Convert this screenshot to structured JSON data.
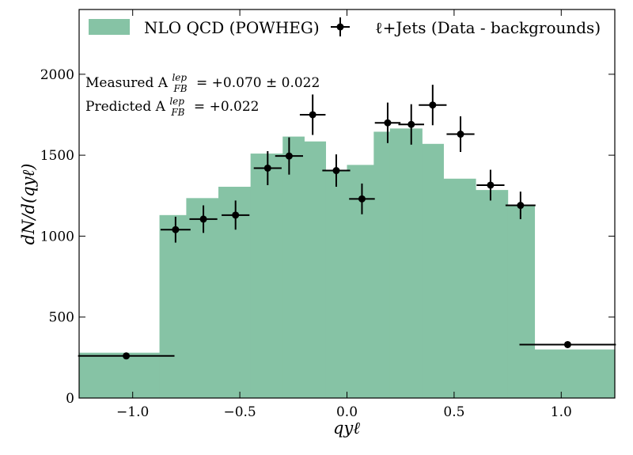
{
  "chart_data": {
    "type": "bar",
    "title": "",
    "xlabel": "qyℓ",
    "ylabel": "dN/d(qyℓ)",
    "xlim": [
      -1.25,
      1.25
    ],
    "ylim": [
      0,
      2400
    ],
    "xticks": [
      -1.0,
      -0.5,
      0.0,
      0.5,
      1.0
    ],
    "xtick_labels": [
      "−1.0",
      "−0.5",
      "0.0",
      "0.5",
      "1.0"
    ],
    "yticks": [
      0,
      500,
      1000,
      1500,
      2000
    ],
    "ytick_labels": [
      "0",
      "500",
      "1000",
      "1500",
      "2000"
    ],
    "series": [
      {
        "name": "NLO QCD (POWHEG)",
        "kind": "histogram",
        "color": "#86c3a5",
        "bin_edges": [
          -1.25,
          -0.875,
          -0.75,
          -0.6,
          -0.45,
          -0.3,
          -0.2,
          -0.1,
          0.0,
          0.125,
          0.2,
          0.35,
          0.45,
          0.6,
          0.75,
          0.875,
          1.25
        ],
        "values": [
          280,
          1130,
          1235,
          1305,
          1510,
          1615,
          1585,
          1405,
          1440,
          1645,
          1665,
          1570,
          1355,
          1285,
          1195,
          300
        ]
      },
      {
        "name": "ℓ+Jets (Data - backgrounds)",
        "kind": "errorbar",
        "color": "#000000",
        "points": [
          {
            "x": -1.03,
            "y": 260,
            "xerr": 0.225,
            "yerr": 15
          },
          {
            "x": -0.8,
            "y": 1040,
            "xerr": 0.07,
            "yerr": 80
          },
          {
            "x": -0.67,
            "y": 1105,
            "xerr": 0.065,
            "yerr": 85
          },
          {
            "x": -0.52,
            "y": 1130,
            "xerr": 0.065,
            "yerr": 90
          },
          {
            "x": -0.37,
            "y": 1420,
            "xerr": 0.065,
            "yerr": 105
          },
          {
            "x": -0.27,
            "y": 1495,
            "xerr": 0.065,
            "yerr": 115
          },
          {
            "x": -0.16,
            "y": 1750,
            "xerr": 0.06,
            "yerr": 125
          },
          {
            "x": -0.05,
            "y": 1405,
            "xerr": 0.065,
            "yerr": 100
          },
          {
            "x": 0.07,
            "y": 1230,
            "xerr": 0.06,
            "yerr": 95
          },
          {
            "x": 0.19,
            "y": 1700,
            "xerr": 0.06,
            "yerr": 125
          },
          {
            "x": 0.3,
            "y": 1690,
            "xerr": 0.06,
            "yerr": 125
          },
          {
            "x": 0.4,
            "y": 1810,
            "xerr": 0.065,
            "yerr": 125
          },
          {
            "x": 0.53,
            "y": 1630,
            "xerr": 0.065,
            "yerr": 110
          },
          {
            "x": 0.67,
            "y": 1315,
            "xerr": 0.065,
            "yerr": 95
          },
          {
            "x": 0.81,
            "y": 1190,
            "xerr": 0.07,
            "yerr": 85
          },
          {
            "x": 1.03,
            "y": 330,
            "xerr": 0.225,
            "yerr": 15
          }
        ]
      }
    ],
    "legend": {
      "position": "top",
      "entries": [
        "NLO QCD (POWHEG)",
        "ℓ+Jets (Data - backgrounds)"
      ]
    },
    "annotations": [
      {
        "label": "Measured A",
        "sup": "lep",
        "sub": "FB",
        "value": "= +0.070 ± 0.022"
      },
      {
        "label": "Predicted A",
        "sup": "lep",
        "sub": "FB",
        "value": "= +0.022"
      }
    ]
  }
}
